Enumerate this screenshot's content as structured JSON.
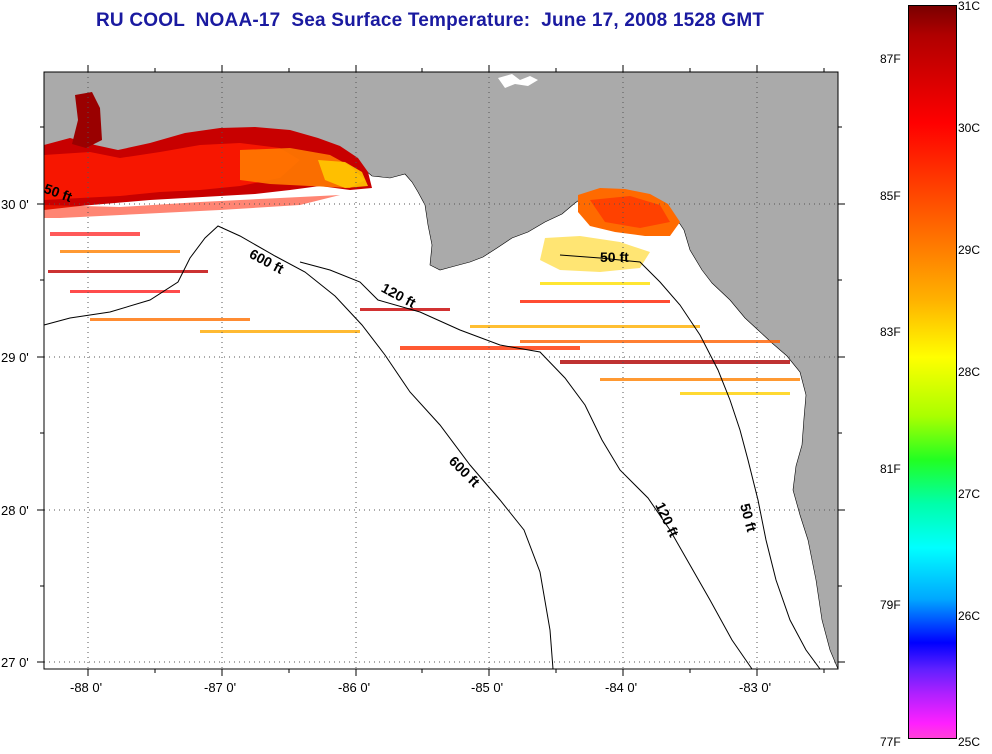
{
  "title": "RU COOL  NOAA-17  Sea Surface Temperature:  June 17, 2008 1528 GMT",
  "map": {
    "lon_range": [
      -88.35,
      -82.35
    ],
    "lat_range": [
      26.95,
      30.9
    ],
    "lon_ticks": [
      "-88 0'",
      "-87 0'",
      "-86 0'",
      "-85 0'",
      "-84 0'",
      "-83 0'"
    ],
    "lat_ticks": [
      "30 0'",
      "29 0'",
      "28 0'",
      "27 0'"
    ],
    "land_color": "#aaaaaa",
    "ocean_color": "#ffffff",
    "isobaths": [
      "50 ft",
      "600 ft",
      "120 ft",
      "50 ft",
      "600 ft",
      "120 ft",
      "50 ft"
    ]
  },
  "colorbar": {
    "celsius": [
      "31C",
      "30C",
      "29C",
      "28C",
      "27C",
      "26C",
      "25C"
    ],
    "fahrenheit": [
      "87F",
      "85F",
      "83F",
      "81F",
      "79F",
      "77F"
    ]
  }
}
